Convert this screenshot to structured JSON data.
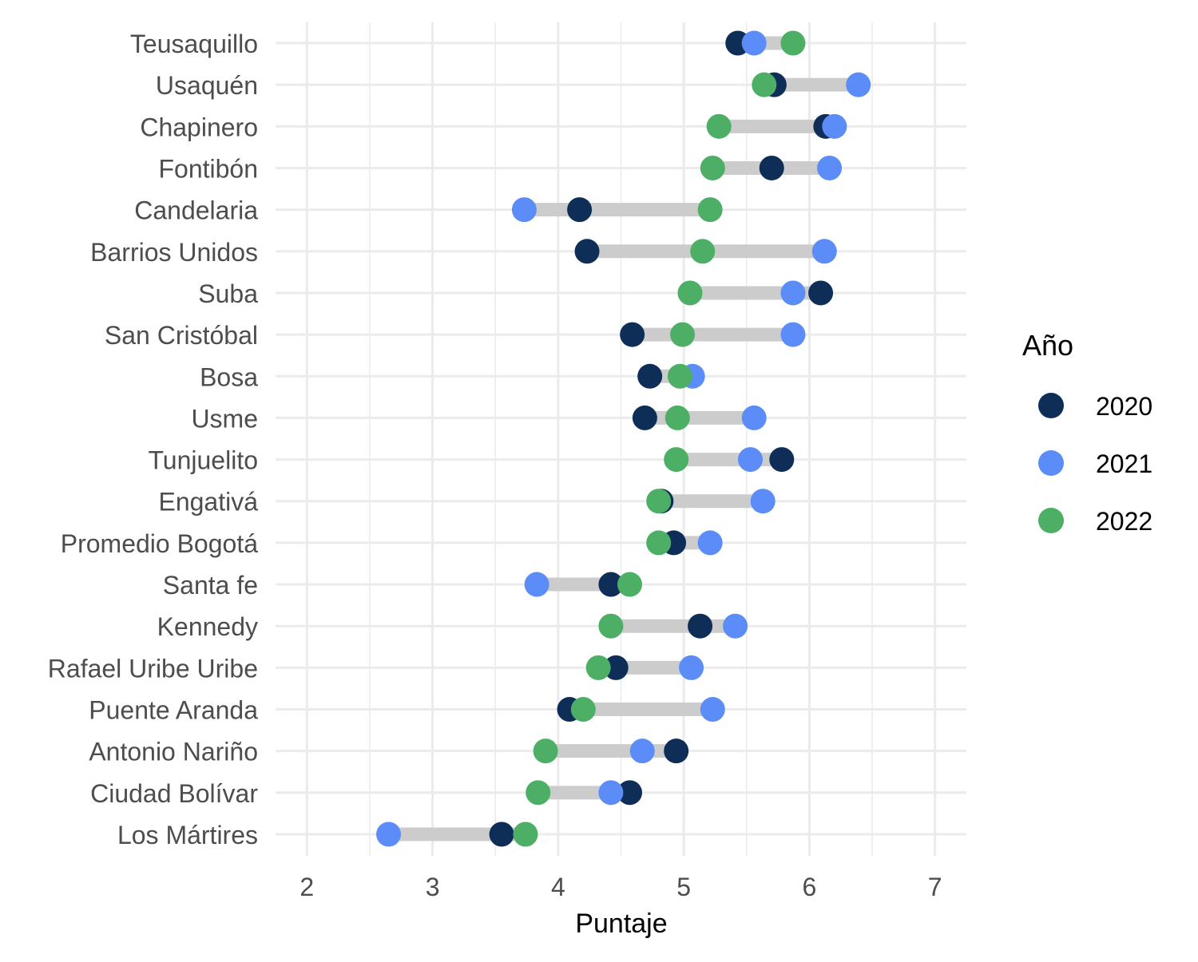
{
  "chart_data": {
    "type": "dumbbell",
    "title": "",
    "xlabel": "Puntaje",
    "ylabel": "",
    "xlim": [
      1.75,
      7.25
    ],
    "x_ticks": [
      2,
      3,
      4,
      5,
      6,
      7
    ],
    "grid": true,
    "legend": {
      "title": "Año",
      "placement": "right"
    },
    "categories": [
      "Teusaquillo",
      "Usaquén",
      "Chapinero",
      "Fontibón",
      "Candelaria",
      "Barrios Unidos",
      "Suba",
      "San Cristóbal",
      "Bosa",
      "Usme",
      "Tunjuelito",
      "Engativá",
      "Promedio Bogotá",
      "Santa fe",
      "Kennedy",
      "Rafael Uribe Uribe",
      "Puente Aranda",
      "Antonio Nariño",
      "Ciudad Bolívar",
      "Los Mártires"
    ],
    "series": [
      {
        "name": "2020",
        "color": "#0f2e57",
        "values": [
          5.43,
          5.72,
          6.13,
          5.7,
          4.17,
          4.23,
          6.09,
          4.59,
          4.73,
          4.69,
          5.78,
          4.82,
          4.92,
          4.42,
          5.13,
          4.46,
          4.09,
          4.94,
          4.57,
          3.55
        ]
      },
      {
        "name": "2021",
        "color": "#5b8cf7",
        "values": [
          5.56,
          6.39,
          6.2,
          6.16,
          3.73,
          6.12,
          5.87,
          5.87,
          5.07,
          5.56,
          5.53,
          5.63,
          5.21,
          3.83,
          5.41,
          5.06,
          5.23,
          4.67,
          4.42,
          2.65
        ]
      },
      {
        "name": "2022",
        "color": "#4caf65",
        "values": [
          5.87,
          5.64,
          5.28,
          5.23,
          5.21,
          5.15,
          5.05,
          4.99,
          4.97,
          4.95,
          4.94,
          4.8,
          4.8,
          4.57,
          4.42,
          4.32,
          4.2,
          3.9,
          3.84,
          3.74
        ]
      }
    ],
    "segment_color": "#cccccc"
  }
}
